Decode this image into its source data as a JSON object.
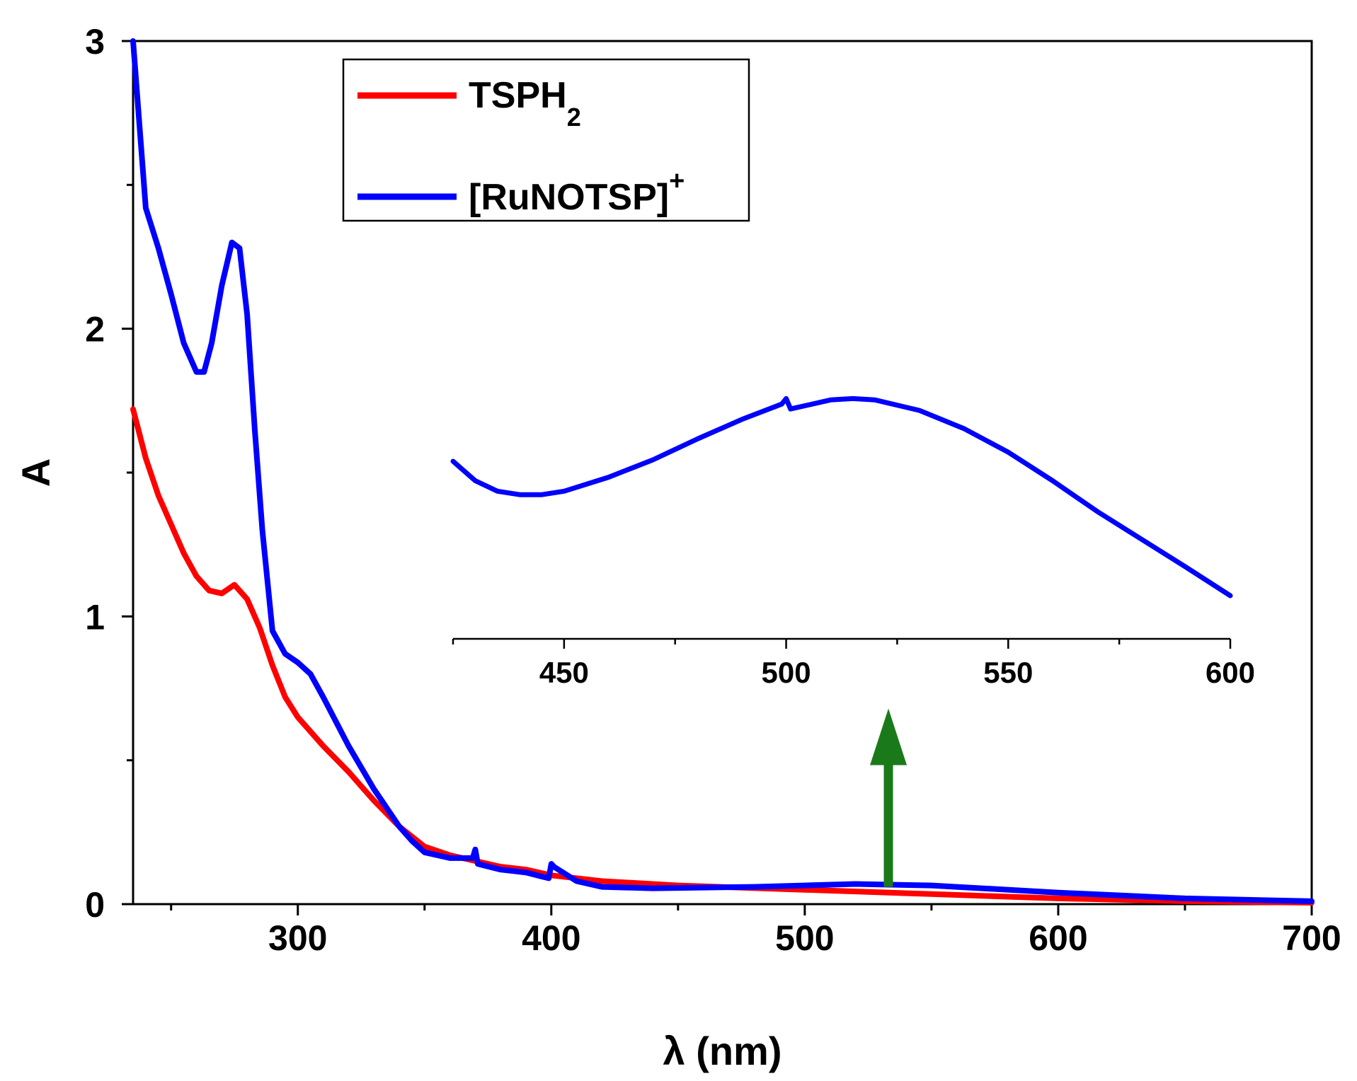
{
  "chart_data": [
    {
      "id": "main",
      "type": "line",
      "title": "",
      "xlabel": "λ (nm)",
      "ylabel": "A",
      "xlim": [
        235,
        700
      ],
      "ylim": [
        0,
        3
      ],
      "x_ticks": [
        300,
        400,
        500,
        600,
        700
      ],
      "y_ticks": [
        0,
        1,
        2,
        3
      ],
      "grid": false,
      "legend_position": "top-center",
      "series": [
        {
          "name": "TSPH",
          "name_sub": "2",
          "color": "#ff0000",
          "x": [
            235,
            240,
            245,
            250,
            255,
            260,
            265,
            270,
            275,
            280,
            285,
            290,
            295,
            300,
            310,
            320,
            330,
            340,
            350,
            360,
            370,
            380,
            390,
            400,
            420,
            450,
            500,
            550,
            600,
            650,
            700
          ],
          "y": [
            1.72,
            1.55,
            1.42,
            1.32,
            1.22,
            1.14,
            1.09,
            1.08,
            1.11,
            1.06,
            0.96,
            0.83,
            0.72,
            0.65,
            0.55,
            0.46,
            0.36,
            0.27,
            0.2,
            0.17,
            0.15,
            0.13,
            0.12,
            0.1,
            0.08,
            0.065,
            0.05,
            0.035,
            0.02,
            0.01,
            0.005
          ]
        },
        {
          "name": "[RuNOTSP]",
          "name_sup": "+",
          "color": "#0000ff",
          "x": [
            235,
            240,
            245,
            250,
            255,
            260,
            263,
            266,
            270,
            274,
            277,
            280,
            283,
            286,
            290,
            295,
            300,
            305,
            310,
            320,
            330,
            340,
            345,
            350,
            360,
            369,
            370,
            371,
            380,
            390,
            399,
            400,
            401,
            410,
            420,
            440,
            480,
            500,
            520,
            550,
            600,
            650,
            700
          ],
          "y": [
            3.0,
            2.42,
            2.28,
            2.12,
            1.95,
            1.85,
            1.85,
            1.95,
            2.15,
            2.3,
            2.28,
            2.05,
            1.65,
            1.3,
            0.95,
            0.87,
            0.84,
            0.8,
            0.72,
            0.55,
            0.4,
            0.27,
            0.22,
            0.18,
            0.16,
            0.16,
            0.19,
            0.14,
            0.12,
            0.11,
            0.09,
            0.14,
            0.13,
            0.08,
            0.06,
            0.055,
            0.06,
            0.065,
            0.07,
            0.065,
            0.04,
            0.02,
            0.01
          ]
        }
      ],
      "annotations": [
        {
          "type": "arrow",
          "direction": "up",
          "color": "#1a7a1a",
          "x": 533,
          "y_from": 0.06,
          "y_to": 0.68
        }
      ]
    },
    {
      "id": "inset",
      "type": "line",
      "title": "",
      "xlabel": "",
      "ylabel": "",
      "xlim": [
        425,
        600
      ],
      "ylim": [
        1.55,
        2.0
      ],
      "x_ticks": [
        450,
        500,
        550,
        600
      ],
      "y_axis_visible": false,
      "grid": false,
      "series": [
        {
          "name": "[RuNOTSP]+",
          "color": "#0000ff",
          "x": [
            425,
            430,
            435,
            440,
            445,
            450,
            460,
            470,
            480,
            490,
            499,
            500,
            501,
            510,
            515,
            520,
            530,
            540,
            550,
            560,
            570,
            580,
            590,
            600
          ],
          "y": [
            1.805,
            1.777,
            1.762,
            1.757,
            1.757,
            1.762,
            1.782,
            1.807,
            1.837,
            1.865,
            1.887,
            1.895,
            1.88,
            1.893,
            1.895,
            1.893,
            1.878,
            1.852,
            1.818,
            1.777,
            1.733,
            1.693,
            1.653,
            1.612
          ]
        }
      ]
    }
  ]
}
